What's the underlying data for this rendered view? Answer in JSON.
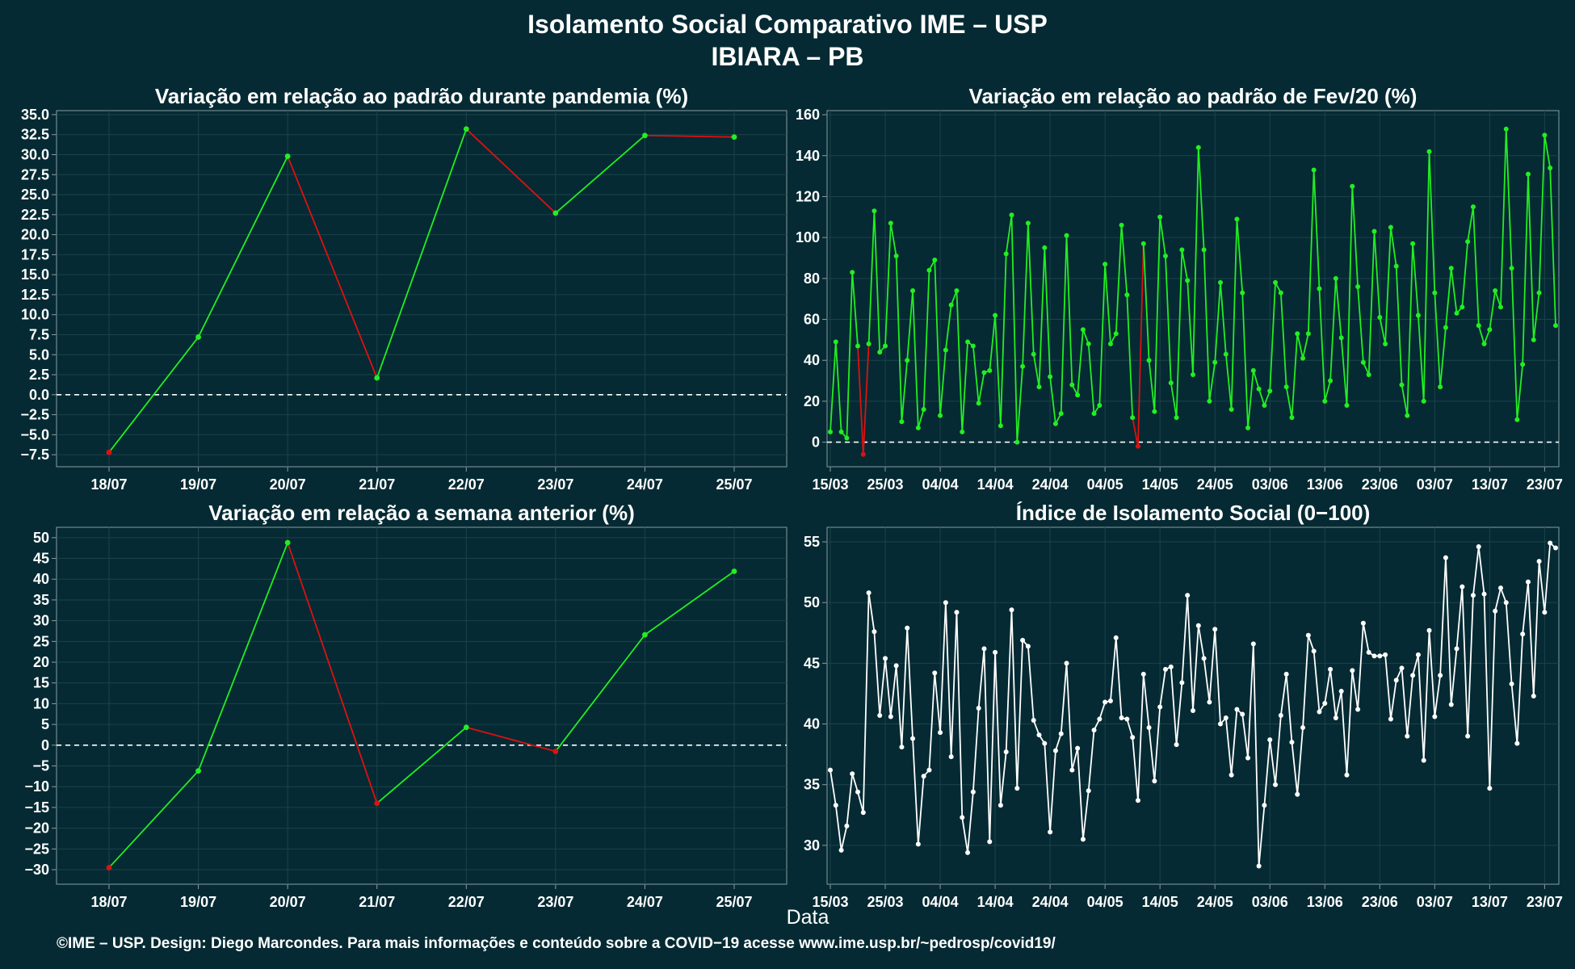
{
  "header": {
    "title": "Isolamento Social Comparativo IME – USP",
    "subtitle": "IBIARA – PB"
  },
  "caption": {
    "xlabel": "Data"
  },
  "footer": {
    "text": "©IME – USP. Design: Diego Marcondes. Para mais informações e conteúdo sobre a COVID−19 acesse www.ime.usp.br/~pedrosp/covid19/"
  },
  "colors": {
    "background": "#052a33",
    "plot_bg": "#052a33",
    "grid": "#1c424a",
    "frame": "#8a9ca0",
    "positive": "#22ee22",
    "negative": "#dd1111",
    "index_line": "#ffffff",
    "zero_line": "#ffffff"
  },
  "chart_data": [
    {
      "id": "pandemia",
      "type": "line",
      "title": "Variação em relação ao padrão durante pandemia (%)",
      "categories": [
        "18/07",
        "19/07",
        "20/07",
        "21/07",
        "22/07",
        "23/07",
        "24/07",
        "25/07"
      ],
      "values": [
        -7.2,
        7.2,
        29.8,
        2.1,
        33.2,
        22.7,
        32.4,
        32.2
      ],
      "ylim": [
        -9.0,
        35.5
      ],
      "yticks": [
        -7.5,
        -5,
        -2.5,
        0,
        2.5,
        5,
        7.5,
        10,
        12.5,
        15,
        17.5,
        20,
        22.5,
        25,
        27.5,
        30,
        32.5,
        35
      ],
      "ytick_decimals": 1,
      "zero_line": "dashed",
      "color_rule": "green when value rises / red when value falls or below zero",
      "grid": true
    },
    {
      "id": "fev20",
      "type": "line",
      "title": "Variação em relação ao padrão de Fev/20 (%)",
      "x_start": "15/03",
      "x_end": "25/07",
      "xticks": [
        "15/03",
        "25/03",
        "04/04",
        "14/04",
        "24/04",
        "04/05",
        "14/05",
        "24/05",
        "03/06",
        "13/06",
        "23/06",
        "03/07",
        "13/07",
        "23/07"
      ],
      "values": [
        5,
        49,
        5,
        2,
        83,
        47,
        -6,
        48,
        113,
        44,
        47,
        107,
        91,
        10,
        40,
        74,
        7,
        16,
        84,
        89,
        13,
        45,
        67,
        74,
        5,
        49,
        47,
        19,
        34,
        35,
        62,
        8,
        92,
        111,
        0,
        37,
        107,
        43,
        27,
        95,
        32,
        9,
        14,
        101,
        28,
        23,
        55,
        48,
        14,
        18,
        87,
        48,
        53,
        106,
        72,
        12,
        -2,
        97,
        40,
        15,
        110,
        91,
        29,
        12,
        94,
        79,
        33,
        144,
        94,
        20,
        39,
        78,
        43,
        16,
        109,
        73,
        7,
        35,
        26,
        18,
        25,
        78,
        73,
        27,
        12,
        53,
        41,
        53,
        133,
        75,
        20,
        30,
        80,
        51,
        18,
        125,
        76,
        39,
        33,
        103,
        61,
        48,
        105,
        86,
        28,
        13,
        97,
        62,
        20,
        142,
        73,
        27,
        56,
        85,
        63,
        66,
        98,
        115,
        57,
        48,
        55,
        74,
        66,
        153,
        85,
        11,
        38,
        131,
        50,
        73,
        150,
        134,
        57
      ],
      "ylim": [
        -12,
        162
      ],
      "yticks": [
        0,
        20,
        40,
        60,
        80,
        100,
        120,
        140,
        160
      ],
      "zero_line": "dashed",
      "color_rule": "green above zero / red segments toward negatives",
      "grid": true
    },
    {
      "id": "semana",
      "type": "line",
      "title": "Variação em relação a semana anterior (%)",
      "categories": [
        "18/07",
        "19/07",
        "20/07",
        "21/07",
        "22/07",
        "23/07",
        "24/07",
        "25/07"
      ],
      "values": [
        -29.5,
        -6.2,
        48.8,
        -14.0,
        4.3,
        -1.5,
        26.6,
        41.9
      ],
      "ylim": [
        -33.5,
        52.5
      ],
      "yticks": [
        -30,
        -25,
        -20,
        -15,
        -10,
        -5,
        0,
        5,
        10,
        15,
        20,
        25,
        30,
        35,
        40,
        45,
        50
      ],
      "ytick_decimals": 0,
      "zero_line": "dashed",
      "color_rule": "green when value rises / red when value falls",
      "grid": true
    },
    {
      "id": "indice",
      "type": "line",
      "title": "Índice de Isolamento Social (0−100)",
      "x_start": "15/03",
      "x_end": "25/07",
      "xticks": [
        "15/03",
        "25/03",
        "04/04",
        "14/04",
        "24/04",
        "04/05",
        "14/05",
        "24/05",
        "03/06",
        "13/06",
        "23/06",
        "03/07",
        "13/07",
        "23/07"
      ],
      "values": [
        36.2,
        33.3,
        29.6,
        31.6,
        35.9,
        34.4,
        32.7,
        50.8,
        47.6,
        40.7,
        45.4,
        40.6,
        44.8,
        38.1,
        47.9,
        38.8,
        30.1,
        35.7,
        36.2,
        44.2,
        39.3,
        50.0,
        37.3,
        49.2,
        32.3,
        29.4,
        34.4,
        41.3,
        46.2,
        30.3,
        45.9,
        33.3,
        37.7,
        49.4,
        34.7,
        46.9,
        46.4,
        40.3,
        39.1,
        38.4,
        31.1,
        37.8,
        39.2,
        45.0,
        36.2,
        38.0,
        30.5,
        34.5,
        39.5,
        40.4,
        41.8,
        41.9,
        47.1,
        40.5,
        40.4,
        38.9,
        33.7,
        44.1,
        39.7,
        35.3,
        41.4,
        44.5,
        44.7,
        38.3,
        43.4,
        50.6,
        41.1,
        48.1,
        45.4,
        41.8,
        47.8,
        40.0,
        40.5,
        35.8,
        41.2,
        40.8,
        37.2,
        46.6,
        28.3,
        33.3,
        38.7,
        35.0,
        40.7,
        44.1,
        38.5,
        34.2,
        39.7,
        47.3,
        46.0,
        41.0,
        41.7,
        44.5,
        40.5,
        42.7,
        35.8,
        44.4,
        41.2,
        48.3,
        45.9,
        45.6,
        45.6,
        45.7,
        40.4,
        43.6,
        44.6,
        39.0,
        44.0,
        45.7,
        37.0,
        47.7,
        40.6,
        44.0,
        53.7,
        41.6,
        46.2,
        51.3,
        39.0,
        50.6,
        54.6,
        50.7,
        34.7,
        49.3,
        51.2,
        50.0,
        43.3,
        38.4,
        47.4,
        51.7,
        42.3,
        53.4,
        49.2,
        54.9,
        54.5
      ],
      "ylim": [
        26.8,
        56.2
      ],
      "yticks": [
        30,
        35,
        40,
        45,
        50,
        55
      ],
      "zero_line": "none",
      "color_rule": "white",
      "grid": true
    }
  ]
}
